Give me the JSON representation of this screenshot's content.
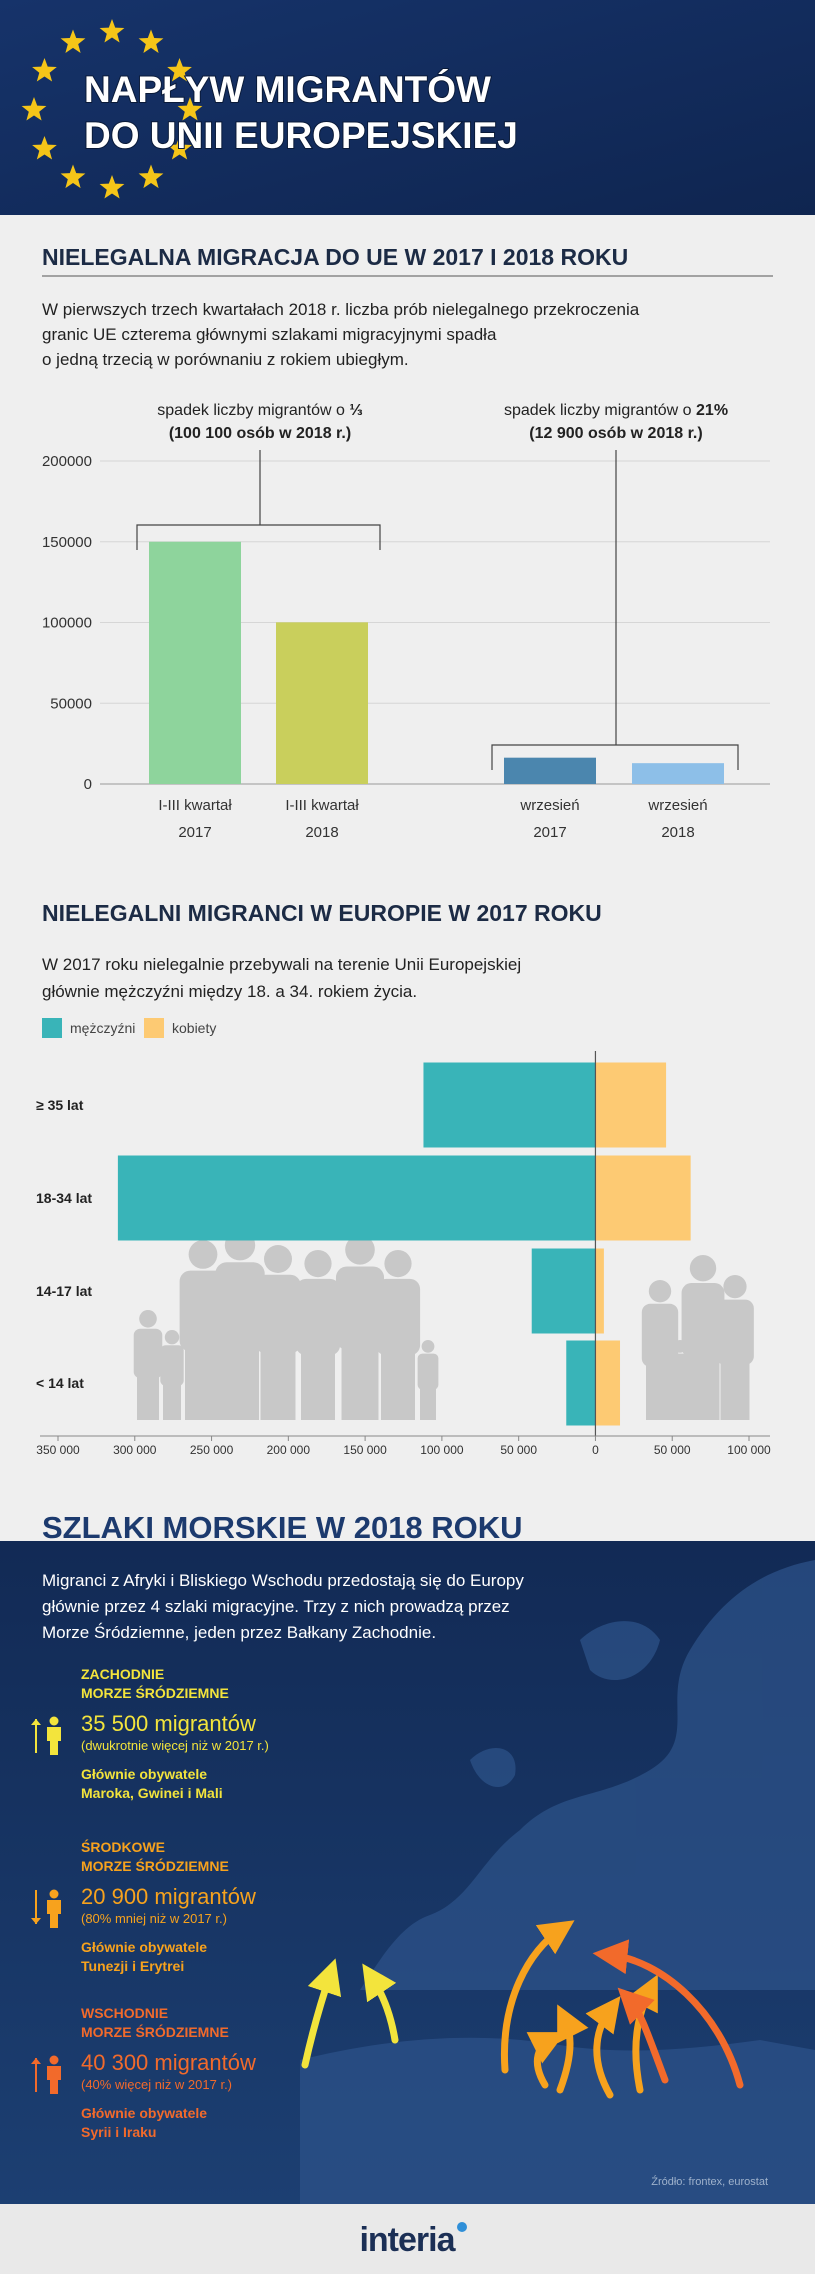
{
  "header": {
    "title_lines": [
      "NAPŁYW MIGRANTÓW",
      "DO UNII EUROPEJSKIEJ"
    ]
  },
  "chart_data": [
    {
      "type": "bar",
      "title": "NIELEGALNA MIGRACJA DO UE W 2017 I 2018 ROKU",
      "description": "W pierwszych trzech kwartałach 2018 r. liczba prób nielegalnego przekroczenia\ngranic UE czterema głównymi szlakami migracyjnymi spadła\no jedną trzecią w porównaniu z rokiem ubiegłym.",
      "annotations": [
        {
          "text": "spadek liczby migrantów o",
          "emphasis": "⅓",
          "detail": "(100 100 osób w 2018 r.)"
        },
        {
          "text": "spadek liczby migrantów o",
          "emphasis": "21%",
          "detail": "(12 900 osób w 2018 r.)"
        }
      ],
      "categories": [
        "I-III kwartał\n2017",
        "I-III kwartał\n2018",
        "wrzesień\n2017",
        "wrzesień\n2018"
      ],
      "values": [
        150000,
        100100,
        16300,
        12900
      ],
      "colors": [
        "#8ed49c",
        "#c9cf5c",
        "#4b86ae",
        "#8dbfe8"
      ],
      "ylim": [
        0,
        200000
      ],
      "yticks": [
        0,
        50000,
        100000,
        150000,
        200000
      ],
      "grid": true
    },
    {
      "type": "pyramid",
      "title": "NIELEGALNI MIGRANCI W EUROPIE W 2017 ROKU",
      "description": "W 2017 roku nielegalnie przebywali na terenie Unii Europejskiej\ngłównie mężczyźni między 18. a 34. rokiem życia.",
      "categories": [
        "≥ 35 lat",
        "18-34 lat",
        "14-17 lat",
        "< 14 lat"
      ],
      "series": [
        {
          "name": "mężczyźni",
          "color": "#39b4b8",
          "values": [
            -112000,
            -311000,
            -41500,
            -19000
          ]
        },
        {
          "name": "kobiety",
          "color": "#fdca73",
          "values": [
            46000,
            62000,
            5500,
            16000
          ]
        }
      ],
      "xlim": [
        -350000,
        100000
      ],
      "xticks": [
        {
          "value": -350000,
          "label": "350 000"
        },
        {
          "value": -300000,
          "label": "300 000"
        },
        {
          "value": -250000,
          "label": "250 000"
        },
        {
          "value": -200000,
          "label": "200 000"
        },
        {
          "value": -150000,
          "label": "150 000"
        },
        {
          "value": -100000,
          "label": "100 000"
        },
        {
          "value": -50000,
          "label": "50 000"
        },
        0,
        {
          "value": 50000,
          "label": "50 000"
        },
        {
          "value": 100000,
          "label": "100 000"
        }
      ],
      "legend": "top-left"
    }
  ],
  "routes": {
    "title": "SZLAKI MORSKIE W 2018 ROKU",
    "description": "Migranci z Afryki i Bliskiego Wschodu przedostają się do Europy\ngłównie przez 4 szlaki migracyjne. Trzy z nich prowadzą przez\nMorze Śródziemne, jeden przez Bałkany Zachodnie.",
    "items": [
      {
        "name": "ZACHODNIE\nMORZE ŚRÓDZIEMNE",
        "count": "35 500 migrantów",
        "note": "(dwukrotnie więcej niż w 2017 r.)",
        "citizens": "Głównie obywatele\nMaroka, Gwinei i Mali",
        "color": "#f3e43c"
      },
      {
        "name": "ŚRODKOWE\nMORZE ŚRÓDZIEMNE",
        "count": "20 900 migrantów",
        "note": "(80% mniej niż w 2017 r.)",
        "citizens": "Głównie obywatele\nTunezji i Erytrei",
        "color": "#f7a21d"
      },
      {
        "name": "WSCHODNIE\nMORZE ŚRÓDZIEMNE",
        "count": "40 300 migrantów",
        "note": "(40% więcej niż w 2017 r.)",
        "citizens": "Głównie obywatele\nSyrii i Iraku",
        "color": "#f26a2b"
      }
    ],
    "source": "Źródło: frontex, eurostat"
  },
  "footer": {
    "logo": "interia"
  }
}
